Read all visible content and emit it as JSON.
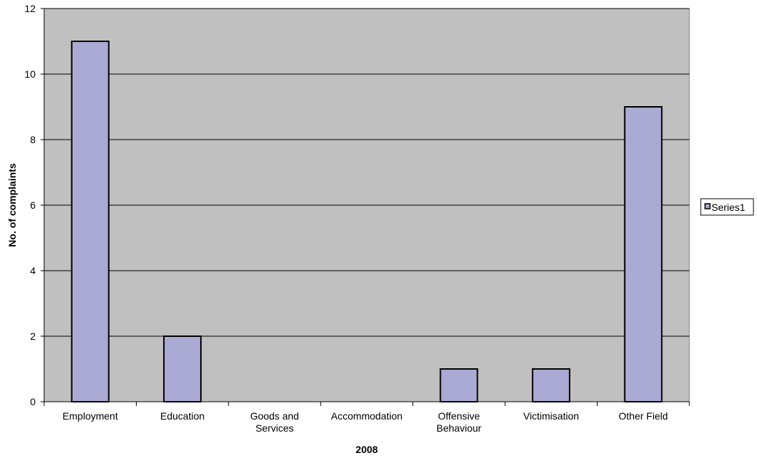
{
  "chart_data": {
    "type": "bar",
    "categories": [
      [
        "Employment"
      ],
      [
        "Education"
      ],
      [
        "Goods and",
        "Services"
      ],
      [
        "Accommodation"
      ],
      [
        "Offensive",
        "Behaviour"
      ],
      [
        "Victimisation"
      ],
      [
        "Other Field"
      ]
    ],
    "series": [
      {
        "name": "Series1",
        "values": [
          11,
          2,
          0,
          0,
          1,
          1,
          9
        ]
      }
    ],
    "xlabel": "2008",
    "ylabel": "No. of complaints",
    "ylim": [
      0,
      12
    ],
    "yticks": [
      0,
      2,
      4,
      6,
      8,
      10,
      12
    ],
    "grid": true,
    "legend": "right",
    "colors": {
      "bar_fill": "#aaaad5",
      "bar_stroke": "#000000",
      "plot_bg": "#c0c0c0",
      "gridline": "#000000"
    }
  }
}
